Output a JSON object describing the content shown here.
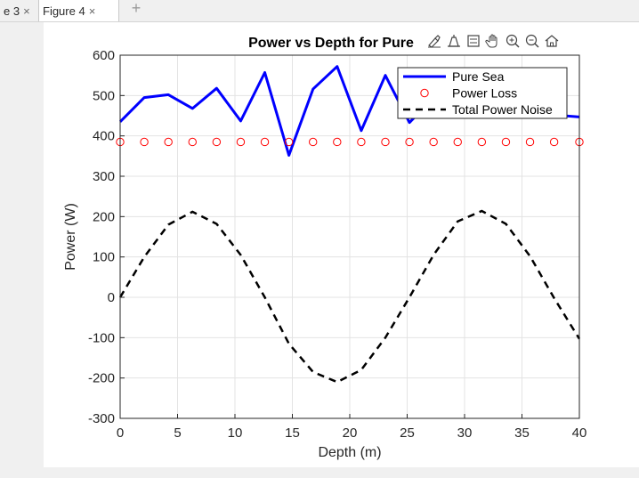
{
  "tabs": [
    {
      "label": "e 3",
      "close": "×"
    },
    {
      "label": "Figure 4",
      "close": "×"
    }
  ],
  "add_tab": "+",
  "toolbar_icons": [
    "brush-icon",
    "data-tips-icon",
    "legend-icon",
    "pan-icon",
    "zoom-in-icon",
    "zoom-out-icon",
    "home-icon"
  ],
  "chart_data": {
    "type": "line",
    "title": "Power vs Depth for Pure",
    "xlabel": "Depth (m)",
    "ylabel": "Power (W)",
    "xlim": [
      0,
      40
    ],
    "ylim": [
      -300,
      600
    ],
    "xticks": [
      0,
      5,
      10,
      15,
      20,
      25,
      30,
      35,
      40
    ],
    "yticks": [
      -300,
      -200,
      -100,
      0,
      100,
      200,
      300,
      400,
      500,
      600
    ],
    "grid": true,
    "legend_position": "top-right",
    "series": [
      {
        "name": "Pure Sea",
        "style": "solid",
        "color": "#0000ff",
        "x": [
          0,
          2.1,
          4.2,
          6.3,
          8.4,
          10.5,
          12.6,
          14.7,
          16.8,
          18.9,
          21.0,
          23.1,
          25.2,
          27.3,
          29.4,
          31.5,
          33.6,
          35.7,
          37.8,
          40
        ],
        "y": [
          435,
          495,
          502,
          468,
          518,
          437,
          557,
          352,
          516,
          572,
          413,
          550,
          433,
          495,
          470,
          500,
          455,
          470,
          452,
          447
        ]
      },
      {
        "name": "Power Loss",
        "style": "markers",
        "color": "#ff0000",
        "x": [
          0,
          2.1,
          4.2,
          6.3,
          8.4,
          10.5,
          12.6,
          14.7,
          16.8,
          18.9,
          21.0,
          23.1,
          25.2,
          27.3,
          29.4,
          31.5,
          33.6,
          35.7,
          37.8,
          40
        ],
        "y": [
          385,
          385,
          385,
          385,
          385,
          385,
          385,
          385,
          385,
          385,
          385,
          385,
          385,
          385,
          385,
          385,
          385,
          385,
          385,
          385
        ]
      },
      {
        "name": "Total Power Noise",
        "style": "dashed",
        "color": "#000000",
        "x": [
          0,
          2.1,
          4.2,
          6.3,
          8.4,
          10.5,
          12.6,
          14.7,
          16.8,
          18.9,
          21.0,
          23.1,
          25.2,
          27.3,
          29.4,
          31.5,
          33.6,
          35.7,
          37.8,
          40
        ],
        "y": [
          0,
          100,
          180,
          212,
          182,
          105,
          0,
          -115,
          -185,
          -210,
          -180,
          -100,
          0,
          105,
          188,
          214,
          182,
          102,
          -2,
          -103
        ]
      }
    ]
  }
}
